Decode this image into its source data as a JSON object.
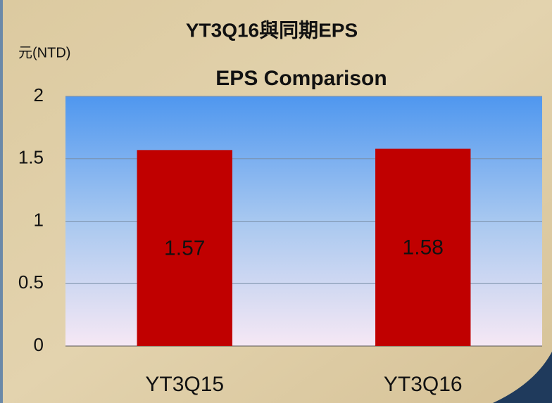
{
  "chart_data": {
    "type": "bar",
    "title": "YT3Q16與同期EPS",
    "subtitle": "EPS Comparison",
    "y_label": "元(NTD)",
    "categories": [
      "YT3Q15",
      "YT3Q16"
    ],
    "values": [
      1.57,
      1.58
    ],
    "color": "#c00000",
    "ylim": [
      0,
      2
    ],
    "yticks": [
      0,
      0.5,
      1,
      1.5,
      2
    ],
    "grid": true
  }
}
